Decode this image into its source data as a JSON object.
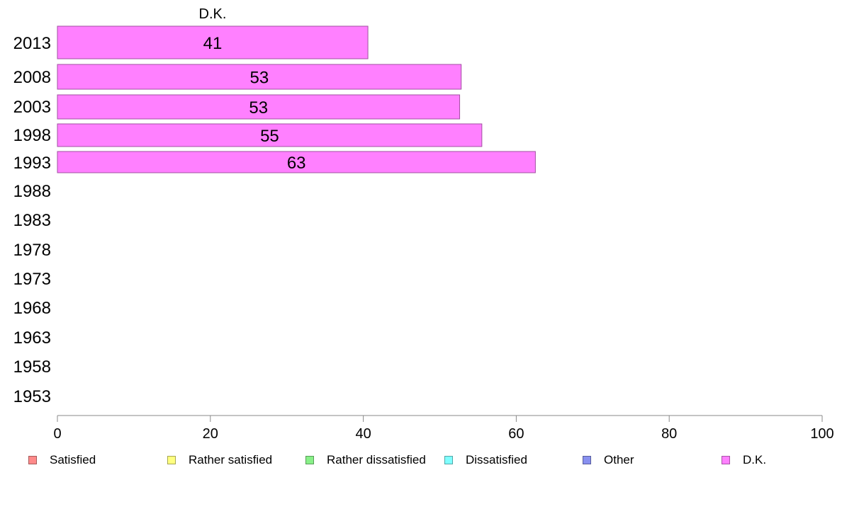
{
  "chart_data": {
    "type": "bar",
    "orientation": "horizontal",
    "stacked": true,
    "title": "D.K.",
    "xlabel": "",
    "ylabel": "",
    "xlim": [
      0,
      100
    ],
    "x_ticks": [
      0,
      20,
      40,
      60,
      80,
      100
    ],
    "categories": [
      "2013",
      "2008",
      "2003",
      "1998",
      "1993",
      "1988",
      "1983",
      "1978",
      "1973",
      "1968",
      "1963",
      "1958",
      "1953"
    ],
    "series": [
      {
        "name": "Satisfied",
        "color": "#ff8a8a",
        "values": [
          null,
          null,
          null,
          null,
          null,
          null,
          null,
          null,
          null,
          null,
          null,
          null,
          null
        ]
      },
      {
        "name": "Rather satisfied",
        "color": "#ffff80",
        "values": [
          null,
          null,
          null,
          null,
          null,
          null,
          null,
          null,
          null,
          null,
          null,
          null,
          null
        ]
      },
      {
        "name": "Rather dissatisfied",
        "color": "#88f088",
        "values": [
          null,
          null,
          null,
          null,
          null,
          null,
          null,
          null,
          null,
          null,
          null,
          null,
          null
        ]
      },
      {
        "name": "Dissatisfied",
        "color": "#80ffff",
        "values": [
          null,
          null,
          null,
          null,
          null,
          null,
          null,
          null,
          null,
          null,
          null,
          null,
          null
        ]
      },
      {
        "name": "Other",
        "color": "#8890f0",
        "values": [
          null,
          null,
          null,
          null,
          null,
          null,
          null,
          null,
          null,
          null,
          null,
          null,
          null
        ]
      },
      {
        "name": "D.K.",
        "color": "#ff80ff",
        "values": [
          40.6,
          52.8,
          52.6,
          55.5,
          62.5,
          null,
          null,
          null,
          null,
          null,
          null,
          null,
          null
        ],
        "labels": [
          "41",
          "53",
          "53",
          "55",
          "63"
        ]
      }
    ],
    "legend_position": "bottom",
    "grid": false
  }
}
